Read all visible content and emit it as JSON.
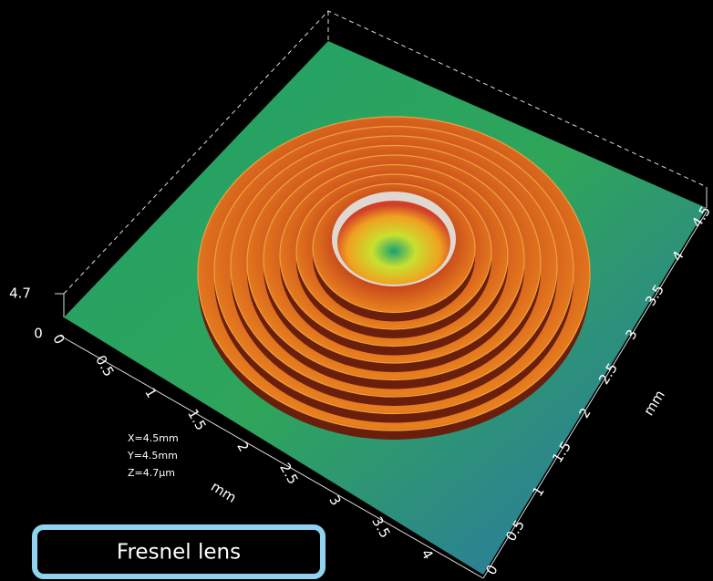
{
  "z_axis": {
    "max_label": "4.7",
    "min_label": "0"
  },
  "x_axis": {
    "ticks": [
      "0",
      "0.5",
      "1",
      "1.5",
      "2",
      "2.5",
      "3",
      "3.5",
      "4"
    ],
    "label": "mm"
  },
  "y_axis": {
    "ticks": [
      "0",
      "0.5",
      "1",
      "1.5",
      "2",
      "2.5",
      "3",
      "3.5",
      "4",
      "4.5"
    ],
    "label": "mm"
  },
  "info": [
    "X=4.5mm",
    "Y=4.5mm",
    "Z=4.7µm"
  ],
  "caption": "Fresnel lens"
}
